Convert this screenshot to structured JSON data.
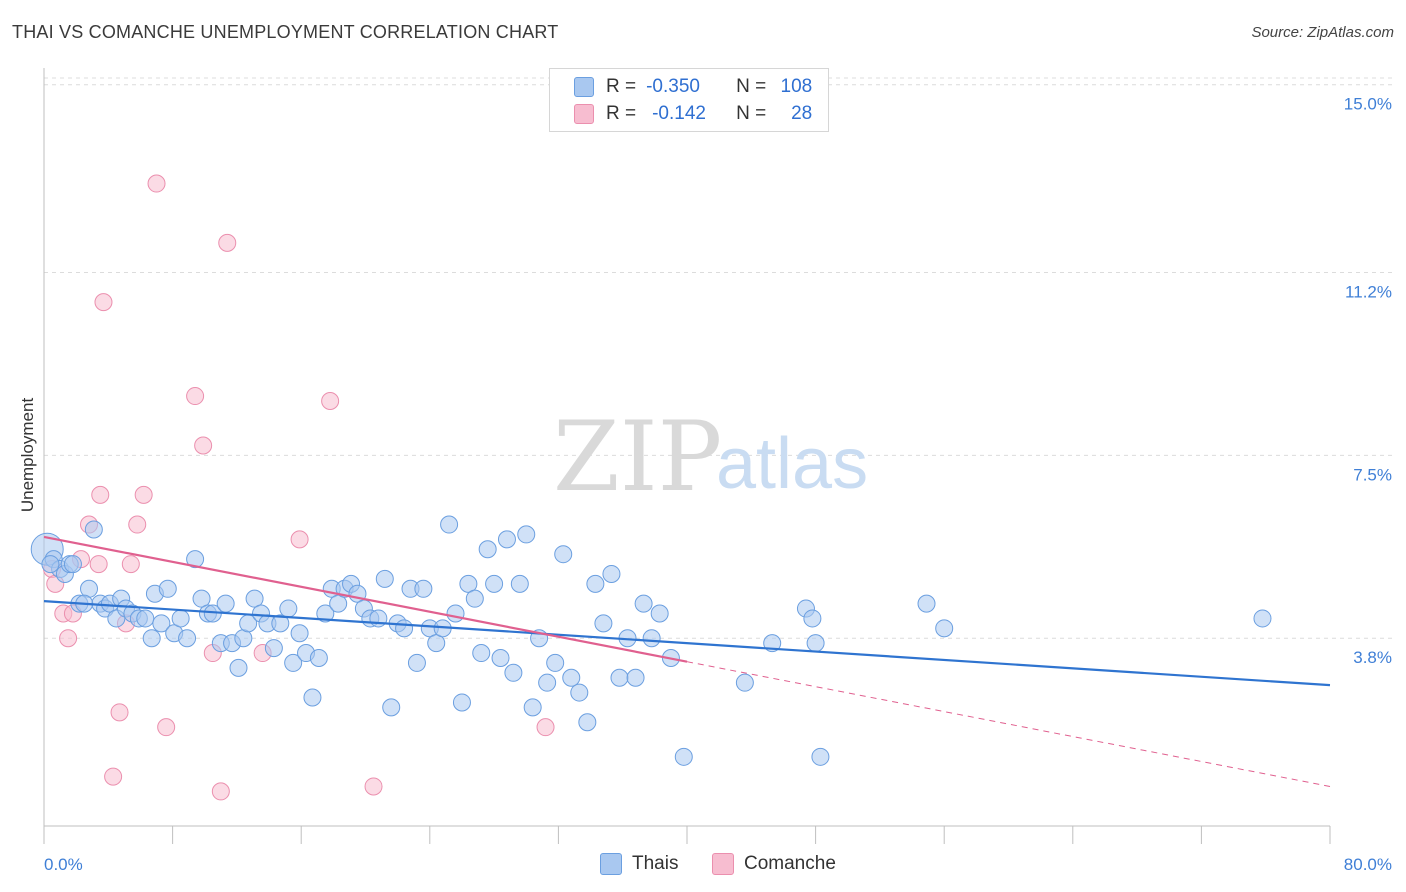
{
  "title": "THAI VS COMANCHE UNEMPLOYMENT CORRELATION CHART",
  "source": "Source: ZipAtlas.com",
  "watermark": {
    "zip": "ZIP",
    "atlas": "atlas"
  },
  "legend": {
    "rows": [
      {
        "r_label": "R =",
        "r_value": "-0.350",
        "n_label": "N =",
        "n_value": "108"
      },
      {
        "r_label": "R =",
        "r_value": "-0.142",
        "n_label": "N =",
        "n_value": "28"
      }
    ]
  },
  "colors": {
    "thais_fill": "#a9c8f0",
    "thais_stroke": "#6b9fe0",
    "thais_line": "#2f74d0",
    "comanche_fill": "#f7bdd0",
    "comanche_stroke": "#eb8fae",
    "comanche_line": "#e0608f",
    "tick_text": "#3f7fd6",
    "grid": "#dcdcdc"
  },
  "chart_data": {
    "type": "scatter",
    "xlabel": "",
    "ylabel": "Unemployment",
    "xlim": [
      0,
      80
    ],
    "ylim": [
      0,
      15.5
    ],
    "x_tick_labels": [
      "0.0%",
      "80.0%"
    ],
    "y_ticks": [
      3.8,
      7.5,
      11.2,
      15.0
    ],
    "y_tick_labels": [
      "3.8%",
      "7.5%",
      "11.2%",
      "15.0%"
    ],
    "grid": true,
    "legend_position": "top-center",
    "series": [
      {
        "name": "Thais",
        "trend": {
          "x": [
            0,
            80
          ],
          "y": [
            4.55,
            2.85
          ],
          "dashed_from": null
        },
        "points": [
          [
            0.2,
            5.6
          ],
          [
            0.6,
            5.4
          ],
          [
            1.0,
            5.2
          ],
          [
            1.3,
            5.1
          ],
          [
            1.6,
            5.3
          ],
          [
            2.2,
            4.5
          ],
          [
            2.8,
            4.8
          ],
          [
            3.1,
            6.0
          ],
          [
            3.5,
            4.5
          ],
          [
            3.8,
            4.4
          ],
          [
            4.1,
            4.5
          ],
          [
            4.5,
            4.2
          ],
          [
            4.8,
            4.6
          ],
          [
            5.1,
            4.4
          ],
          [
            5.5,
            4.3
          ],
          [
            5.9,
            4.2
          ],
          [
            6.3,
            4.2
          ],
          [
            6.7,
            3.8
          ],
          [
            6.9,
            4.7
          ],
          [
            7.3,
            4.1
          ],
          [
            7.7,
            4.8
          ],
          [
            8.1,
            3.9
          ],
          [
            8.5,
            4.2
          ],
          [
            8.9,
            3.8
          ],
          [
            9.4,
            5.4
          ],
          [
            9.8,
            4.6
          ],
          [
            10.2,
            4.3
          ],
          [
            10.5,
            4.3
          ],
          [
            11.0,
            3.7
          ],
          [
            11.3,
            4.5
          ],
          [
            11.7,
            3.7
          ],
          [
            12.1,
            3.2
          ],
          [
            12.4,
            3.8
          ],
          [
            12.7,
            4.1
          ],
          [
            13.1,
            4.6
          ],
          [
            13.5,
            4.3
          ],
          [
            13.9,
            4.1
          ],
          [
            14.3,
            3.6
          ],
          [
            14.7,
            4.1
          ],
          [
            15.2,
            4.4
          ],
          [
            15.5,
            3.3
          ],
          [
            15.9,
            3.9
          ],
          [
            16.3,
            3.5
          ],
          [
            16.7,
            2.6
          ],
          [
            17.1,
            3.4
          ],
          [
            17.5,
            4.3
          ],
          [
            17.9,
            4.8
          ],
          [
            18.3,
            4.5
          ],
          [
            18.7,
            4.8
          ],
          [
            19.1,
            4.9
          ],
          [
            19.5,
            4.7
          ],
          [
            19.9,
            4.4
          ],
          [
            20.3,
            4.2
          ],
          [
            20.8,
            4.2
          ],
          [
            21.2,
            5.0
          ],
          [
            21.6,
            2.4
          ],
          [
            22.0,
            4.1
          ],
          [
            22.4,
            4.0
          ],
          [
            22.8,
            4.8
          ],
          [
            23.2,
            3.3
          ],
          [
            23.6,
            4.8
          ],
          [
            24.0,
            4.0
          ],
          [
            24.4,
            3.7
          ],
          [
            24.8,
            4.0
          ],
          [
            25.2,
            6.1
          ],
          [
            25.6,
            4.3
          ],
          [
            26.0,
            2.5
          ],
          [
            26.4,
            4.9
          ],
          [
            26.8,
            4.6
          ],
          [
            27.2,
            3.5
          ],
          [
            27.6,
            5.6
          ],
          [
            28.0,
            4.9
          ],
          [
            28.4,
            3.4
          ],
          [
            28.8,
            5.8
          ],
          [
            29.2,
            3.1
          ],
          [
            29.6,
            4.9
          ],
          [
            30.0,
            5.9
          ],
          [
            30.4,
            2.4
          ],
          [
            30.8,
            3.8
          ],
          [
            31.3,
            2.9
          ],
          [
            31.8,
            3.3
          ],
          [
            32.3,
            5.5
          ],
          [
            32.8,
            3.0
          ],
          [
            33.3,
            2.7
          ],
          [
            33.8,
            2.1
          ],
          [
            34.3,
            4.9
          ],
          [
            34.8,
            4.1
          ],
          [
            35.3,
            5.1
          ],
          [
            35.8,
            3.0
          ],
          [
            36.3,
            3.8
          ],
          [
            36.8,
            3.0
          ],
          [
            37.3,
            4.5
          ],
          [
            37.8,
            3.8
          ],
          [
            38.3,
            4.3
          ],
          [
            39.0,
            3.4
          ],
          [
            39.8,
            1.4
          ],
          [
            43.6,
            2.9
          ],
          [
            45.3,
            3.7
          ],
          [
            47.4,
            4.4
          ],
          [
            47.8,
            4.2
          ],
          [
            48.0,
            3.7
          ],
          [
            48.3,
            1.4
          ],
          [
            54.9,
            4.5
          ],
          [
            56.0,
            4.0
          ],
          [
            75.8,
            4.2
          ],
          [
            0.4,
            5.3
          ],
          [
            1.8,
            5.3
          ],
          [
            2.5,
            4.5
          ]
        ]
      },
      {
        "name": "Comanche",
        "trend": {
          "x": [
            0,
            80
          ],
          "y": [
            5.85,
            0.8
          ],
          "dashed_from": 40
        },
        "points": [
          [
            0.5,
            5.2
          ],
          [
            0.7,
            4.9
          ],
          [
            1.2,
            4.3
          ],
          [
            1.5,
            3.8
          ],
          [
            1.8,
            4.3
          ],
          [
            2.3,
            5.4
          ],
          [
            2.8,
            6.1
          ],
          [
            3.4,
            5.3
          ],
          [
            3.5,
            6.7
          ],
          [
            3.7,
            10.6
          ],
          [
            4.3,
            1.0
          ],
          [
            4.7,
            2.3
          ],
          [
            5.1,
            4.1
          ],
          [
            5.4,
            5.3
          ],
          [
            5.8,
            6.1
          ],
          [
            6.2,
            6.7
          ],
          [
            7.0,
            13.0
          ],
          [
            7.6,
            2.0
          ],
          [
            9.4,
            8.7
          ],
          [
            9.9,
            7.7
          ],
          [
            10.5,
            3.5
          ],
          [
            11.0,
            0.7
          ],
          [
            11.4,
            11.8
          ],
          [
            13.6,
            3.5
          ],
          [
            15.9,
            5.8
          ],
          [
            17.8,
            8.6
          ],
          [
            20.5,
            0.8
          ],
          [
            31.2,
            2.0
          ]
        ]
      }
    ]
  },
  "bottom_legend": [
    {
      "label": "Thais"
    },
    {
      "label": "Comanche"
    }
  ]
}
